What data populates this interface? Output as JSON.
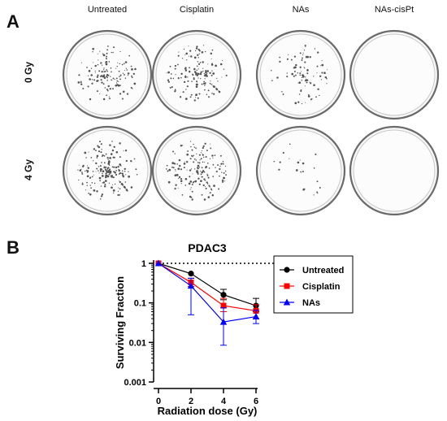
{
  "panelA": {
    "letter": "A",
    "columns": [
      "Untreated",
      "Cisplatin",
      "NAs",
      "NAs-cisPt"
    ],
    "rows": [
      "0 Gy",
      "4 Gy"
    ],
    "colony_density": [
      [
        0.55,
        0.6,
        0.35,
        0.0
      ],
      [
        0.75,
        0.65,
        0.08,
        0.0
      ]
    ]
  },
  "panelB": {
    "letter": "B"
  },
  "chart_data": {
    "type": "line",
    "title": "PDAC3",
    "xlabel": "Radiation dose (Gy)",
    "ylabel": "Surviving Fraction",
    "x": [
      0,
      2,
      4,
      6
    ],
    "xlim": [
      0,
      6
    ],
    "xticks": [
      "0",
      "2",
      "4",
      "6"
    ],
    "yscale": "log",
    "ylim": [
      0.001,
      1
    ],
    "yticks": [
      "0.001",
      "0.01",
      "0.1",
      "1"
    ],
    "reference_line": {
      "y": 1,
      "style": "dotted"
    },
    "series": [
      {
        "name": "Untreated",
        "color": "#000000",
        "marker": "circle",
        "values": [
          1,
          0.55,
          0.16,
          0.085
        ],
        "err_hi": [
          1,
          0.55,
          0.22,
          0.13
        ],
        "err_lo": [
          1,
          0.55,
          0.12,
          0.06
        ]
      },
      {
        "name": "Cisplatin",
        "color": "#ff0000",
        "marker": "square",
        "values": [
          1,
          0.33,
          0.085,
          0.063
        ],
        "err_hi": [
          1,
          0.42,
          0.13,
          0.09
        ],
        "err_lo": [
          1,
          0.26,
          0.06,
          0.04
        ]
      },
      {
        "name": "NAs",
        "color": "#0000ff",
        "marker": "triangle",
        "values": [
          1,
          0.27,
          0.033,
          0.045
        ],
        "err_hi": [
          1,
          0.42,
          0.075,
          0.065
        ],
        "err_lo": [
          1,
          0.05,
          0.0085,
          0.03
        ]
      }
    ],
    "legend_position": "right"
  }
}
